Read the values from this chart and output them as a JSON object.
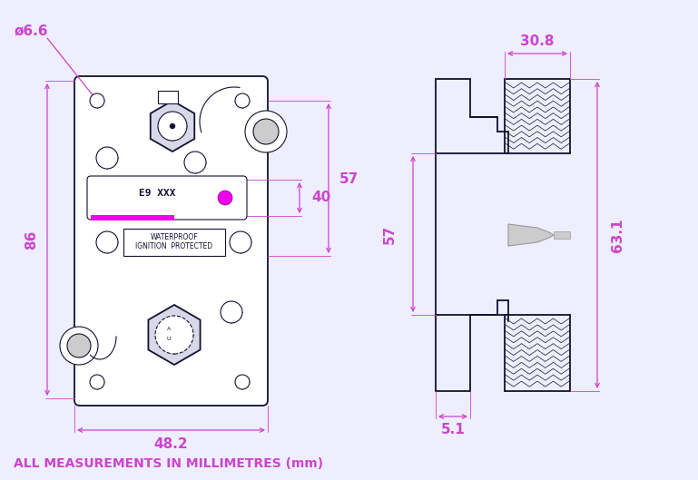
{
  "bg_color": "#eeeeff",
  "line_color": "#111133",
  "dim_color": "#cc44cc",
  "magenta_color": "#ee00ee",
  "gray_color": "#999999",
  "title_text": "ALL MEASUREMENTS IN MILLIMETRES (mm)",
  "title_color": "#cc44cc",
  "title_fontsize": 10,
  "dim_fontsize": 11,
  "dims": {
    "diameter": "ø6.6",
    "height_left": "86",
    "width_bottom": "48.2",
    "height_mid": "40",
    "height_outer": "57",
    "side_width": "30.8",
    "side_height": "63.1",
    "side_base": "5.1"
  }
}
